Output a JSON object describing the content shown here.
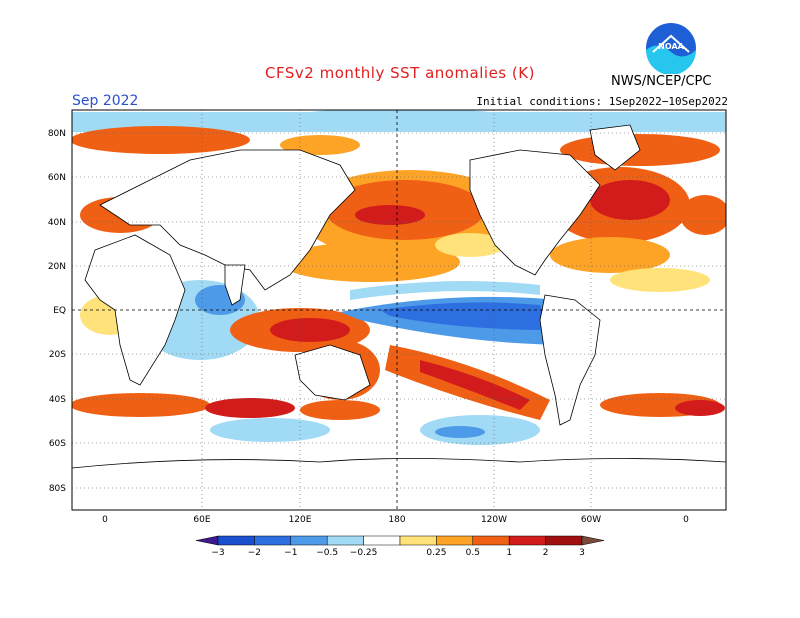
{
  "title": "CFSv2 monthly SST anomalies (K)",
  "month": "Sep 2022",
  "initial_conditions": "Initial conditions: 1Sep2022−10Sep2022",
  "agency": "NWS/NCEP/CPC",
  "logo_text": "NOAA",
  "lat_labels": [
    "80N",
    "60N",
    "40N",
    "20N",
    "EQ",
    "20S",
    "40S",
    "60S",
    "80S"
  ],
  "lon_labels": [
    "0",
    "60E",
    "120E",
    "180",
    "120W",
    "60W",
    "0"
  ],
  "colorbar": {
    "ticks": [
      "−3",
      "−2",
      "−1",
      "−0.5",
      "−0.25",
      "0.25",
      "0.5",
      "1",
      "2",
      "3"
    ],
    "colors": [
      "#3a1a8c",
      "#1a4fd0",
      "#2d6fe0",
      "#4d9be8",
      "#a0daf5",
      "#ffffff",
      "#ffe27a",
      "#fda326",
      "#f06014",
      "#d21c1c",
      "#a01010",
      "#7a4a3a"
    ]
  }
}
